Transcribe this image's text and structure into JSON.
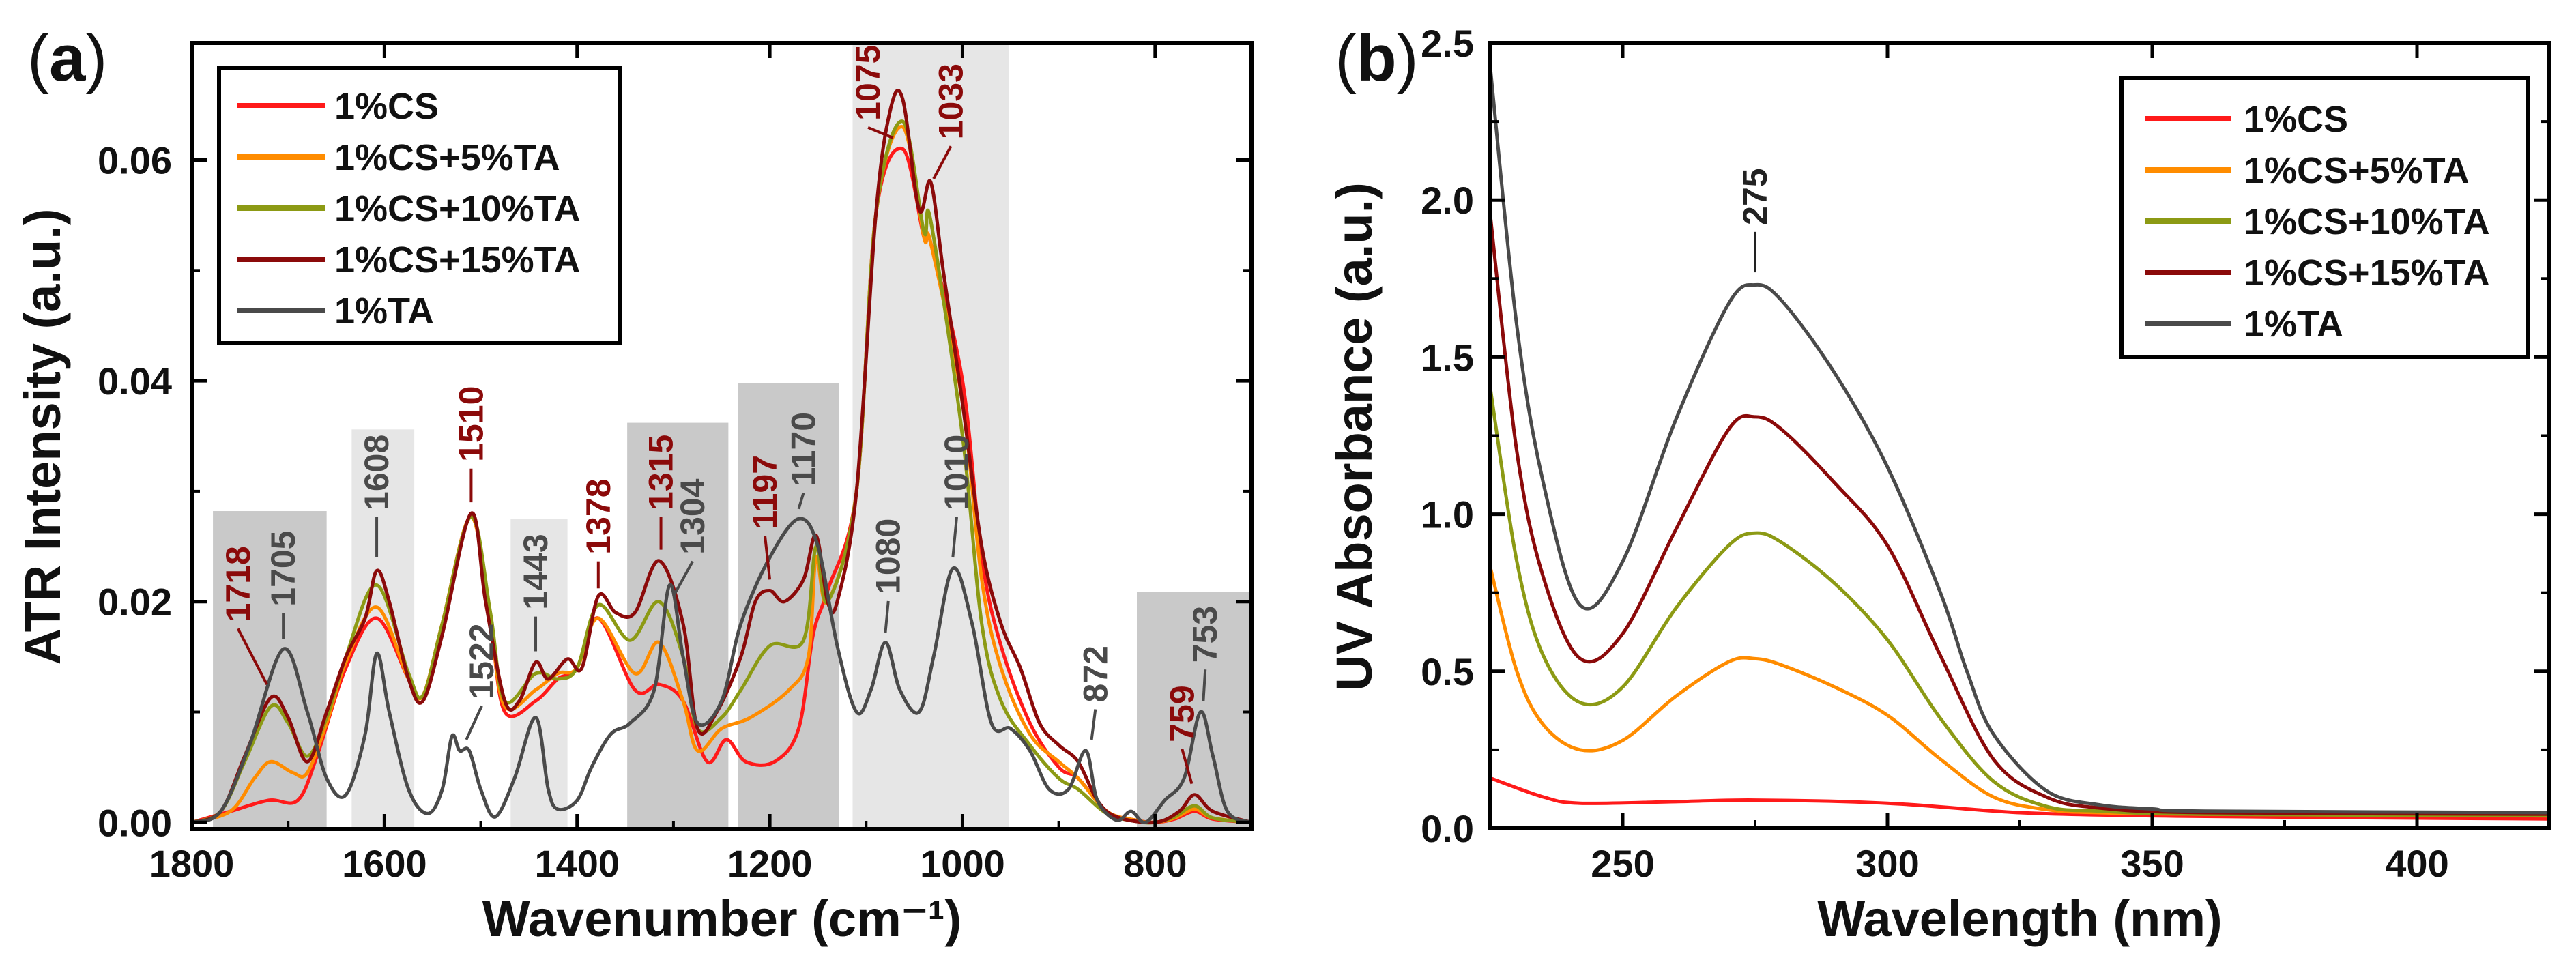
{
  "chart_data": [
    {
      "type": "line",
      "panel_label": "(a)",
      "panel_label_bold": "a",
      "xlabel": "Wavenumber (cm⁻¹)",
      "ylabel": "ATR Intensity (a.u.)",
      "xlim": [
        1800,
        700
      ],
      "x_reversed": true,
      "ylim": [
        -0.0006,
        0.0706
      ],
      "xticks": [
        1800,
        1600,
        1400,
        1200,
        1000,
        800
      ],
      "xtick_labels": [
        "1800",
        "1600",
        "1400",
        "1200",
        "1000",
        "800"
      ],
      "yticks": [
        0,
        0.02,
        0.04,
        0.06
      ],
      "ytick_labels": [
        "0.00",
        "0.02",
        "0.04",
        "0.06"
      ],
      "legend_position": "top-left",
      "shaded_regions": [
        {
          "from": 1778,
          "to": 1660,
          "top": 0.0282,
          "shade": "dark"
        },
        {
          "from": 1634,
          "to": 1569,
          "top": 0.0356,
          "shade": "light"
        },
        {
          "from": 1469,
          "to": 1410,
          "top": 0.0275,
          "shade": "light"
        },
        {
          "from": 1348,
          "to": 1243,
          "top": 0.0362,
          "shade": "dark"
        },
        {
          "from": 1233,
          "to": 1128,
          "top": 0.0398,
          "shade": "dark"
        },
        {
          "from": 1114,
          "to": 952,
          "top": 0.0706,
          "shade": "light"
        },
        {
          "from": 819,
          "to": 700,
          "top": 0.0209,
          "shade": "dark"
        }
      ],
      "series": [
        {
          "name": "1%CS",
          "color": "#ff1a1a",
          "x": [
            1800,
            1760,
            1720,
            1690,
            1670,
            1640,
            1608,
            1575,
            1560,
            1540,
            1510,
            1490,
            1475,
            1443,
            1420,
            1400,
            1378,
            1340,
            1315,
            1290,
            1265,
            1245,
            1225,
            1195,
            1170,
            1155,
            1140,
            1110,
            1090,
            1062,
            1040,
            1033,
            1000,
            980,
            960,
            930,
            900,
            880,
            850,
            820,
            800,
            780,
            759,
            740,
            700
          ],
          "y": [
            0,
            0.001,
            0.002,
            0.002,
            0.006,
            0.014,
            0.0185,
            0.013,
            0.0115,
            0.018,
            0.0277,
            0.018,
            0.01,
            0.011,
            0.013,
            0.014,
            0.0185,
            0.012,
            0.0125,
            0.011,
            0.0055,
            0.0075,
            0.0055,
            0.0055,
            0.0085,
            0.017,
            0.021,
            0.03,
            0.055,
            0.061,
            0.053,
            0.0525,
            0.04,
            0.024,
            0.016,
            0.009,
            0.005,
            0.004,
            0.001,
            0.0002,
            0,
            0.0003,
            0.001,
            0.0003,
            0
          ]
        },
        {
          "name": "1%CS+5%TA",
          "color": "#ff8c00",
          "x": [
            1800,
            1760,
            1735,
            1718,
            1695,
            1680,
            1660,
            1640,
            1608,
            1575,
            1560,
            1540,
            1510,
            1490,
            1475,
            1443,
            1420,
            1400,
            1378,
            1340,
            1315,
            1290,
            1275,
            1250,
            1220,
            1180,
            1160,
            1152,
            1140,
            1110,
            1090,
            1062,
            1040,
            1033,
            1000,
            980,
            960,
            930,
            900,
            880,
            850,
            820,
            800,
            780,
            759,
            740,
            700
          ],
          "y": [
            0,
            0.001,
            0.004,
            0.0055,
            0.0045,
            0.0045,
            0.009,
            0.0145,
            0.0195,
            0.013,
            0.0115,
            0.018,
            0.0277,
            0.018,
            0.0105,
            0.012,
            0.0135,
            0.014,
            0.0185,
            0.0135,
            0.0163,
            0.011,
            0.0065,
            0.0085,
            0.0095,
            0.012,
            0.015,
            0.024,
            0.02,
            0.03,
            0.055,
            0.063,
            0.053,
            0.0525,
            0.038,
            0.022,
            0.014,
            0.008,
            0.0055,
            0.004,
            0.001,
            0.0002,
            0,
            0.0004,
            0.0012,
            0.0004,
            0
          ]
        },
        {
          "name": "1%CS+10%TA",
          "color": "#8c9a14",
          "x": [
            1800,
            1770,
            1745,
            1718,
            1700,
            1680,
            1660,
            1640,
            1608,
            1575,
            1560,
            1540,
            1510,
            1490,
            1475,
            1443,
            1420,
            1400,
            1378,
            1345,
            1315,
            1290,
            1275,
            1250,
            1230,
            1200,
            1165,
            1152,
            1140,
            1110,
            1090,
            1062,
            1040,
            1033,
            1000,
            980,
            960,
            930,
            900,
            880,
            850,
            820,
            800,
            780,
            759,
            740,
            700
          ],
          "y": [
            0,
            0.001,
            0.0055,
            0.0105,
            0.009,
            0.006,
            0.0095,
            0.015,
            0.0215,
            0.0135,
            0.0115,
            0.018,
            0.0277,
            0.019,
            0.011,
            0.0135,
            0.013,
            0.014,
            0.0197,
            0.0165,
            0.02,
            0.015,
            0.0085,
            0.0095,
            0.012,
            0.016,
            0.0165,
            0.025,
            0.02,
            0.03,
            0.055,
            0.0635,
            0.0535,
            0.0545,
            0.035,
            0.018,
            0.011,
            0.007,
            0.004,
            0.003,
            0.0008,
            0.0001,
            0,
            0.0005,
            0.0015,
            0.0004,
            0
          ]
        },
        {
          "name": "1%CS+15%TA",
          "color": "#8b0a0a",
          "x": [
            1800,
            1770,
            1745,
            1718,
            1700,
            1680,
            1660,
            1640,
            1620,
            1608,
            1595,
            1575,
            1560,
            1540,
            1510,
            1495,
            1475,
            1460,
            1443,
            1430,
            1410,
            1395,
            1378,
            1360,
            1340,
            1315,
            1290,
            1275,
            1255,
            1230,
            1215,
            1200,
            1185,
            1165,
            1152,
            1140,
            1130,
            1110,
            1090,
            1075,
            1062,
            1045,
            1033,
            1020,
            1000,
            980,
            960,
            940,
            920,
            900,
            880,
            860,
            840,
            800,
            775,
            759,
            740,
            700
          ],
          "y": [
            0,
            0.001,
            0.006,
            0.0113,
            0.0095,
            0.0055,
            0.01,
            0.015,
            0.0185,
            0.0228,
            0.02,
            0.013,
            0.011,
            0.017,
            0.028,
            0.02,
            0.011,
            0.011,
            0.0145,
            0.013,
            0.0148,
            0.014,
            0.0205,
            0.019,
            0.019,
            0.0237,
            0.018,
            0.0085,
            0.01,
            0.015,
            0.02,
            0.021,
            0.02,
            0.022,
            0.026,
            0.02,
            0.02,
            0.03,
            0.055,
            0.0645,
            0.0655,
            0.0555,
            0.058,
            0.05,
            0.038,
            0.025,
            0.018,
            0.014,
            0.009,
            0.007,
            0.0055,
            0.002,
            0.0005,
            0,
            0.001,
            0.0025,
            0.001,
            0
          ]
        },
        {
          "name": "1%TA",
          "color": "#4a4a4a",
          "x": [
            1800,
            1770,
            1740,
            1705,
            1680,
            1660,
            1640,
            1620,
            1608,
            1595,
            1575,
            1555,
            1540,
            1530,
            1522,
            1512,
            1500,
            1485,
            1465,
            1443,
            1430,
            1420,
            1400,
            1385,
            1365,
            1345,
            1320,
            1304,
            1290,
            1275,
            1250,
            1230,
            1200,
            1170,
            1150,
            1130,
            1110,
            1095,
            1080,
            1065,
            1045,
            1030,
            1010,
            990,
            970,
            950,
            930,
            910,
            890,
            872,
            860,
            840,
            825,
            810,
            790,
            770,
            753,
            740,
            725,
            700
          ],
          "y": [
            0,
            0.001,
            0.007,
            0.0157,
            0.01,
            0.004,
            0.0025,
            0.008,
            0.0153,
            0.01,
            0.003,
            0.0008,
            0.003,
            0.0078,
            0.0065,
            0.0065,
            0.003,
            0.0005,
            0.004,
            0.0095,
            0.003,
            0.0012,
            0.002,
            0.005,
            0.008,
            0.009,
            0.012,
            0.0215,
            0.015,
            0.009,
            0.011,
            0.018,
            0.024,
            0.0275,
            0.025,
            0.016,
            0.01,
            0.012,
            0.0163,
            0.012,
            0.01,
            0.015,
            0.023,
            0.018,
            0.009,
            0.0085,
            0.0065,
            0.003,
            0.003,
            0.0065,
            0.002,
            0.0002,
            0.001,
            0,
            0.002,
            0.004,
            0.01,
            0.006,
            0.001,
            0
          ]
        }
      ],
      "annotations": [
        {
          "text": "1718",
          "x": 1752,
          "y": 0.0173,
          "peak": [
            1722,
            0.0125
          ],
          "color": "#8b0a0a"
        },
        {
          "text": "1705",
          "x": 1705,
          "y": 0.0187,
          "peak": [
            1705,
            0.0166
          ],
          "color": "#4a4a4a"
        },
        {
          "text": "1608",
          "x": 1608,
          "y": 0.0274,
          "peak": [
            1608,
            0.024
          ],
          "color": "#4a4a4a"
        },
        {
          "text": "1510",
          "x": 1510,
          "y": 0.0318,
          "peak": [
            1510,
            0.029
          ],
          "color": "#8b0a0a"
        },
        {
          "text": "1522",
          "x": 1499,
          "y": 0.0103,
          "peak": [
            1515,
            0.0075
          ],
          "color": "#4a4a4a"
        },
        {
          "text": "1443",
          "x": 1443,
          "y": 0.0184,
          "peak": [
            1443,
            0.0155
          ],
          "color": "#4a4a4a"
        },
        {
          "text": "1378",
          "x": 1378,
          "y": 0.0234,
          "peak": [
            1378,
            0.0212
          ],
          "color": "#8b0a0a"
        },
        {
          "text": "1315",
          "x": 1313,
          "y": 0.0274,
          "peak": [
            1313,
            0.0247
          ],
          "color": "#8b0a0a"
        },
        {
          "text": "1304",
          "x": 1280,
          "y": 0.0234,
          "peak": [
            1300,
            0.0205
          ],
          "color": "#4a4a4a"
        },
        {
          "text": "1197",
          "x": 1205,
          "y": 0.0257,
          "peak": [
            1200,
            0.022
          ],
          "color": "#8b0a0a"
        },
        {
          "text": "1170",
          "x": 1165,
          "y": 0.0296,
          "peak": [
            1170,
            0.0284
          ],
          "color": "#4a4a4a"
        },
        {
          "text": "1080",
          "x": 1077,
          "y": 0.0198,
          "peak": [
            1080,
            0.0172
          ],
          "color": "#4a4a4a"
        },
        {
          "text": "1010",
          "x": 1006,
          "y": 0.0274,
          "peak": [
            1010,
            0.024
          ],
          "color": "#4a4a4a"
        },
        {
          "text": "1075",
          "x": 1098,
          "y": 0.0627,
          "peak": [
            1072,
            0.062
          ],
          "color": "#8b0a0a"
        },
        {
          "text": "1033",
          "x": 1012,
          "y": 0.061,
          "peak": [
            1030,
            0.0583
          ],
          "color": "#8b0a0a"
        },
        {
          "text": "872",
          "x": 862,
          "y": 0.01,
          "peak": [
            866,
            0.0075
          ],
          "color": "#4a4a4a"
        },
        {
          "text": "759",
          "x": 772,
          "y": 0.0064,
          "peak": [
            762,
            0.0035
          ],
          "color": "#8b0a0a"
        },
        {
          "text": "753",
          "x": 748,
          "y": 0.0136,
          "peak": [
            750,
            0.011
          ],
          "color": "#4a4a4a"
        }
      ]
    },
    {
      "type": "line",
      "panel_label": "(b)",
      "panel_label_bold": "b",
      "xlabel": "Wavelength (nm)",
      "ylabel": "UV Absorbance (a.u.)",
      "xlim": [
        225,
        425
      ],
      "ylim": [
        0,
        2.5
      ],
      "xticks": [
        250,
        300,
        350,
        400
      ],
      "xtick_labels": [
        "250",
        "300",
        "350",
        "400"
      ],
      "yticks": [
        0,
        0.5,
        1.0,
        1.5,
        2.0,
        2.5
      ],
      "ytick_labels": [
        "0.0",
        "0.5",
        "1.0",
        "1.5",
        "2.0",
        "2.5"
      ],
      "legend_position": "top-right",
      "series": [
        {
          "name": "1%CS",
          "color": "#ff1a1a",
          "x": [
            225,
            235,
            242,
            260,
            275,
            300,
            325,
            350,
            380,
            425
          ],
          "y": [
            0.16,
            0.1,
            0.08,
            0.085,
            0.09,
            0.08,
            0.05,
            0.04,
            0.035,
            0.03
          ]
        },
        {
          "name": "1%CS+5%TA",
          "color": "#ff8c00",
          "x": [
            225,
            230,
            235,
            242,
            250,
            260,
            270,
            275,
            280,
            290,
            300,
            310,
            320,
            330,
            340,
            360,
            425
          ],
          "y": [
            0.83,
            0.5,
            0.33,
            0.25,
            0.28,
            0.42,
            0.53,
            0.54,
            0.52,
            0.45,
            0.36,
            0.22,
            0.1,
            0.06,
            0.05,
            0.045,
            0.04
          ]
        },
        {
          "name": "1%CS+10%TA",
          "color": "#8c9a14",
          "x": [
            225,
            230,
            235,
            242,
            250,
            260,
            270,
            275,
            280,
            290,
            300,
            310,
            320,
            330,
            340,
            360,
            425
          ],
          "y": [
            1.4,
            0.85,
            0.55,
            0.4,
            0.45,
            0.7,
            0.9,
            0.94,
            0.91,
            0.78,
            0.6,
            0.35,
            0.15,
            0.07,
            0.055,
            0.045,
            0.04
          ]
        },
        {
          "name": "1%CS+15%TA",
          "color": "#8b0a0a",
          "x": [
            225,
            230,
            235,
            242,
            250,
            260,
            270,
            275,
            280,
            290,
            300,
            310,
            320,
            330,
            340,
            360,
            425
          ],
          "y": [
            1.95,
            1.2,
            0.8,
            0.54,
            0.62,
            0.95,
            1.27,
            1.31,
            1.27,
            1.1,
            0.9,
            0.55,
            0.22,
            0.1,
            0.065,
            0.05,
            0.045
          ]
        },
        {
          "name": "1%TA",
          "color": "#4a4a4a",
          "x": [
            225,
            230,
            235,
            242,
            250,
            260,
            270,
            275,
            280,
            290,
            300,
            310,
            315,
            320,
            330,
            340,
            350,
            360,
            425
          ],
          "y": [
            2.42,
            1.6,
            1.1,
            0.71,
            0.85,
            1.3,
            1.67,
            1.73,
            1.68,
            1.45,
            1.15,
            0.75,
            0.5,
            0.3,
            0.12,
            0.075,
            0.062,
            0.055,
            0.05
          ]
        }
      ],
      "annotations": [
        {
          "text": "275",
          "x": 275,
          "y": 1.89,
          "peak": [
            275,
            1.77
          ],
          "color": "#222222"
        }
      ]
    }
  ]
}
